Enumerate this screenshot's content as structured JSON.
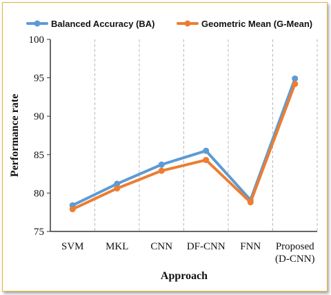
{
  "chart_data": {
    "type": "line",
    "categories": [
      "SVM",
      "MKL",
      "CNN",
      "DF-CNN",
      "FNN",
      "Proposed (D-CNN)"
    ],
    "category_lines": [
      [
        "SVM"
      ],
      [
        "MKL"
      ],
      [
        "CNN"
      ],
      [
        "DF-CNN"
      ],
      [
        "FNN"
      ],
      [
        "Proposed",
        "(D-CNN)"
      ]
    ],
    "series": [
      {
        "name": "Balanced Accuracy (BA)",
        "color": "#5b9bd5",
        "values": [
          78.4,
          81.2,
          83.7,
          85.5,
          79.1,
          94.9
        ]
      },
      {
        "name": "Geometric Mean (G-Mean)",
        "color": "#ed7d31",
        "values": [
          77.9,
          80.6,
          82.9,
          84.3,
          78.8,
          94.2
        ]
      }
    ],
    "xlabel": "Approach",
    "ylabel": "Performance rate",
    "ylim": [
      75,
      100
    ],
    "yticks": [
      75,
      80,
      85,
      90,
      95,
      100
    ],
    "grid": "vertical-dashed",
    "legend_position": "top"
  }
}
